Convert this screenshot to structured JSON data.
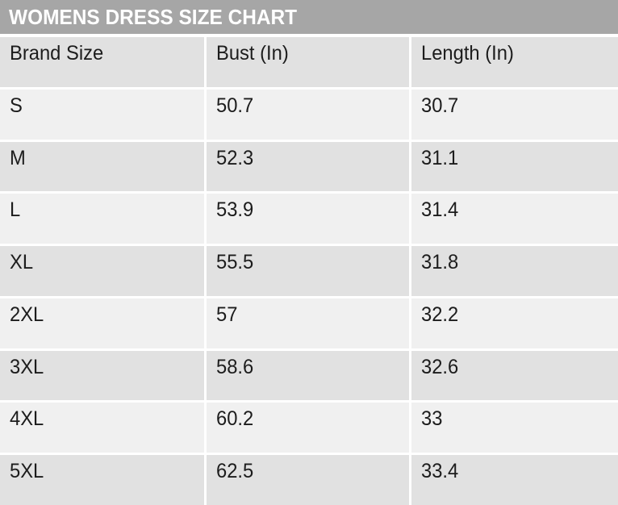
{
  "title": "WOMENS DRESS SIZE CHART",
  "colors": {
    "title_bar_bg": "#a6a6a6",
    "title_text": "#ffffff",
    "header_row_bg": "#e1e1e1",
    "row_dark_bg": "#e1e1e1",
    "row_light_bg": "#f0f0f0",
    "gutter": "#ffffff",
    "cell_text": "#1c1c1c"
  },
  "table": {
    "columns": [
      "Brand Size",
      "Bust (In)",
      "Length (In)"
    ],
    "rows": [
      [
        "S",
        "50.7",
        "30.7"
      ],
      [
        "M",
        "52.3",
        "31.1"
      ],
      [
        "L",
        "53.9",
        "31.4"
      ],
      [
        "XL",
        "55.5",
        "31.8"
      ],
      [
        "2XL",
        "57",
        "32.2"
      ],
      [
        "3XL",
        "58.6",
        "32.6"
      ],
      [
        "4XL",
        "60.2",
        "33"
      ],
      [
        "5XL",
        "62.5",
        "33.4"
      ]
    ]
  },
  "chart_data": {
    "type": "table",
    "title": "WOMENS DRESS SIZE CHART",
    "columns": [
      "Brand Size",
      "Bust (In)",
      "Length (In)"
    ],
    "rows": [
      {
        "brand_size": "S",
        "bust_in": 50.7,
        "length_in": 30.7
      },
      {
        "brand_size": "M",
        "bust_in": 52.3,
        "length_in": 31.1
      },
      {
        "brand_size": "L",
        "bust_in": 53.9,
        "length_in": 31.4
      },
      {
        "brand_size": "XL",
        "bust_in": 55.5,
        "length_in": 31.8
      },
      {
        "brand_size": "2XL",
        "bust_in": 57,
        "length_in": 32.2
      },
      {
        "brand_size": "3XL",
        "bust_in": 58.6,
        "length_in": 32.6
      },
      {
        "brand_size": "4XL",
        "bust_in": 60.2,
        "length_in": 33
      },
      {
        "brand_size": "5XL",
        "bust_in": 62.5,
        "length_in": 33.4
      }
    ],
    "layout": {
      "banded_rows": true,
      "title_position": "top-left",
      "header_row": true
    }
  }
}
